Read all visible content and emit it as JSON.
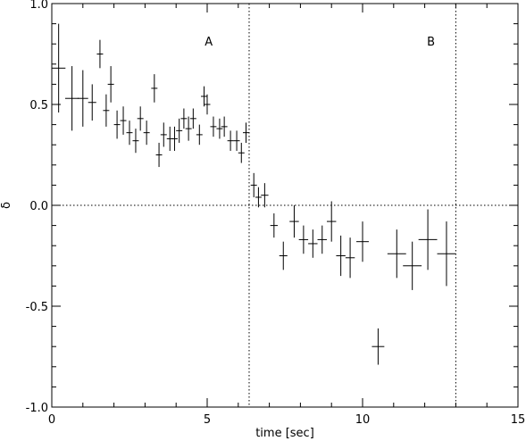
{
  "chart_data": {
    "type": "scatter",
    "title": "",
    "xlabel": "time [sec]",
    "ylabel": "δ",
    "xlim": [
      0,
      15
    ],
    "ylim": [
      -1.0,
      1.0
    ],
    "xticks": [
      0,
      5,
      10,
      15
    ],
    "xtick_labels": [
      "0",
      "5",
      "10",
      "15"
    ],
    "yticks": [
      -1.0,
      -0.5,
      0.0,
      0.5,
      1.0
    ],
    "ytick_labels": [
      "-1.0",
      "-0.5",
      "0.0",
      "0.5",
      "1.0"
    ],
    "grid": false,
    "reference_lines": {
      "horizontal_y": 0.0,
      "vertical_x": [
        6.35,
        13.0
      ]
    },
    "region_labels": [
      {
        "text": "A",
        "x": 5.05,
        "y": 0.81
      },
      {
        "text": "B",
        "x": 12.2,
        "y": 0.81
      }
    ],
    "color": "#000000",
    "points": [
      {
        "x": 0.22,
        "xerr": 0.22,
        "y": 0.68,
        "yerr": 0.22
      },
      {
        "x": 0.65,
        "xerr": 0.22,
        "y": 0.53,
        "yerr": 0.16
      },
      {
        "x": 1.0,
        "xerr": 0.17,
        "y": 0.53,
        "yerr": 0.14
      },
      {
        "x": 1.3,
        "xerr": 0.13,
        "y": 0.51,
        "yerr": 0.09
      },
      {
        "x": 1.55,
        "xerr": 0.1,
        "y": 0.75,
        "yerr": 0.07
      },
      {
        "x": 1.75,
        "xerr": 0.1,
        "y": 0.47,
        "yerr": 0.08
      },
      {
        "x": 1.9,
        "xerr": 0.1,
        "y": 0.6,
        "yerr": 0.09
      },
      {
        "x": 2.1,
        "xerr": 0.1,
        "y": 0.4,
        "yerr": 0.07
      },
      {
        "x": 2.3,
        "xerr": 0.1,
        "y": 0.42,
        "yerr": 0.07
      },
      {
        "x": 2.5,
        "xerr": 0.1,
        "y": 0.36,
        "yerr": 0.06
      },
      {
        "x": 2.7,
        "xerr": 0.1,
        "y": 0.32,
        "yerr": 0.06
      },
      {
        "x": 2.85,
        "xerr": 0.1,
        "y": 0.43,
        "yerr": 0.06
      },
      {
        "x": 3.05,
        "xerr": 0.1,
        "y": 0.36,
        "yerr": 0.06
      },
      {
        "x": 3.3,
        "xerr": 0.1,
        "y": 0.58,
        "yerr": 0.07
      },
      {
        "x": 3.45,
        "xerr": 0.1,
        "y": 0.25,
        "yerr": 0.06
      },
      {
        "x": 3.6,
        "xerr": 0.1,
        "y": 0.35,
        "yerr": 0.06
      },
      {
        "x": 3.8,
        "xerr": 0.1,
        "y": 0.33,
        "yerr": 0.06
      },
      {
        "x": 3.95,
        "xerr": 0.1,
        "y": 0.33,
        "yerr": 0.06
      },
      {
        "x": 4.1,
        "xerr": 0.1,
        "y": 0.37,
        "yerr": 0.06
      },
      {
        "x": 4.25,
        "xerr": 0.1,
        "y": 0.43,
        "yerr": 0.05
      },
      {
        "x": 4.4,
        "xerr": 0.1,
        "y": 0.38,
        "yerr": 0.06
      },
      {
        "x": 4.55,
        "xerr": 0.1,
        "y": 0.43,
        "yerr": 0.05
      },
      {
        "x": 4.75,
        "xerr": 0.1,
        "y": 0.35,
        "yerr": 0.05
      },
      {
        "x": 4.9,
        "xerr": 0.1,
        "y": 0.54,
        "yerr": 0.05
      },
      {
        "x": 5.0,
        "xerr": 0.1,
        "y": 0.5,
        "yerr": 0.05
      },
      {
        "x": 5.2,
        "xerr": 0.1,
        "y": 0.39,
        "yerr": 0.05
      },
      {
        "x": 5.4,
        "xerr": 0.1,
        "y": 0.38,
        "yerr": 0.05
      },
      {
        "x": 5.55,
        "xerr": 0.1,
        "y": 0.39,
        "yerr": 0.05
      },
      {
        "x": 5.75,
        "xerr": 0.1,
        "y": 0.32,
        "yerr": 0.05
      },
      {
        "x": 5.95,
        "xerr": 0.1,
        "y": 0.32,
        "yerr": 0.05
      },
      {
        "x": 6.1,
        "xerr": 0.1,
        "y": 0.26,
        "yerr": 0.05
      },
      {
        "x": 6.25,
        "xerr": 0.1,
        "y": 0.36,
        "yerr": 0.05
      },
      {
        "x": 6.5,
        "xerr": 0.1,
        "y": 0.1,
        "yerr": 0.06
      },
      {
        "x": 6.65,
        "xerr": 0.1,
        "y": 0.04,
        "yerr": 0.05
      },
      {
        "x": 6.85,
        "xerr": 0.12,
        "y": 0.05,
        "yerr": 0.06
      },
      {
        "x": 7.15,
        "xerr": 0.12,
        "y": -0.1,
        "yerr": 0.06
      },
      {
        "x": 7.45,
        "xerr": 0.13,
        "y": -0.25,
        "yerr": 0.07
      },
      {
        "x": 7.8,
        "xerr": 0.15,
        "y": -0.08,
        "yerr": 0.08
      },
      {
        "x": 8.1,
        "xerr": 0.15,
        "y": -0.17,
        "yerr": 0.07
      },
      {
        "x": 8.4,
        "xerr": 0.15,
        "y": -0.19,
        "yerr": 0.07
      },
      {
        "x": 8.7,
        "xerr": 0.15,
        "y": -0.17,
        "yerr": 0.07
      },
      {
        "x": 9.0,
        "xerr": 0.15,
        "y": -0.08,
        "yerr": 0.1
      },
      {
        "x": 9.3,
        "xerr": 0.15,
        "y": -0.25,
        "yerr": 0.1
      },
      {
        "x": 9.6,
        "xerr": 0.15,
        "y": -0.26,
        "yerr": 0.1
      },
      {
        "x": 10.0,
        "xerr": 0.2,
        "y": -0.18,
        "yerr": 0.1
      },
      {
        "x": 10.5,
        "xerr": 0.2,
        "y": -0.7,
        "yerr": 0.09
      },
      {
        "x": 11.1,
        "xerr": 0.3,
        "y": -0.24,
        "yerr": 0.12
      },
      {
        "x": 11.6,
        "xerr": 0.3,
        "y": -0.3,
        "yerr": 0.12
      },
      {
        "x": 12.1,
        "xerr": 0.3,
        "y": -0.17,
        "yerr": 0.15
      },
      {
        "x": 12.7,
        "xerr": 0.3,
        "y": -0.24,
        "yerr": 0.16
      }
    ]
  }
}
